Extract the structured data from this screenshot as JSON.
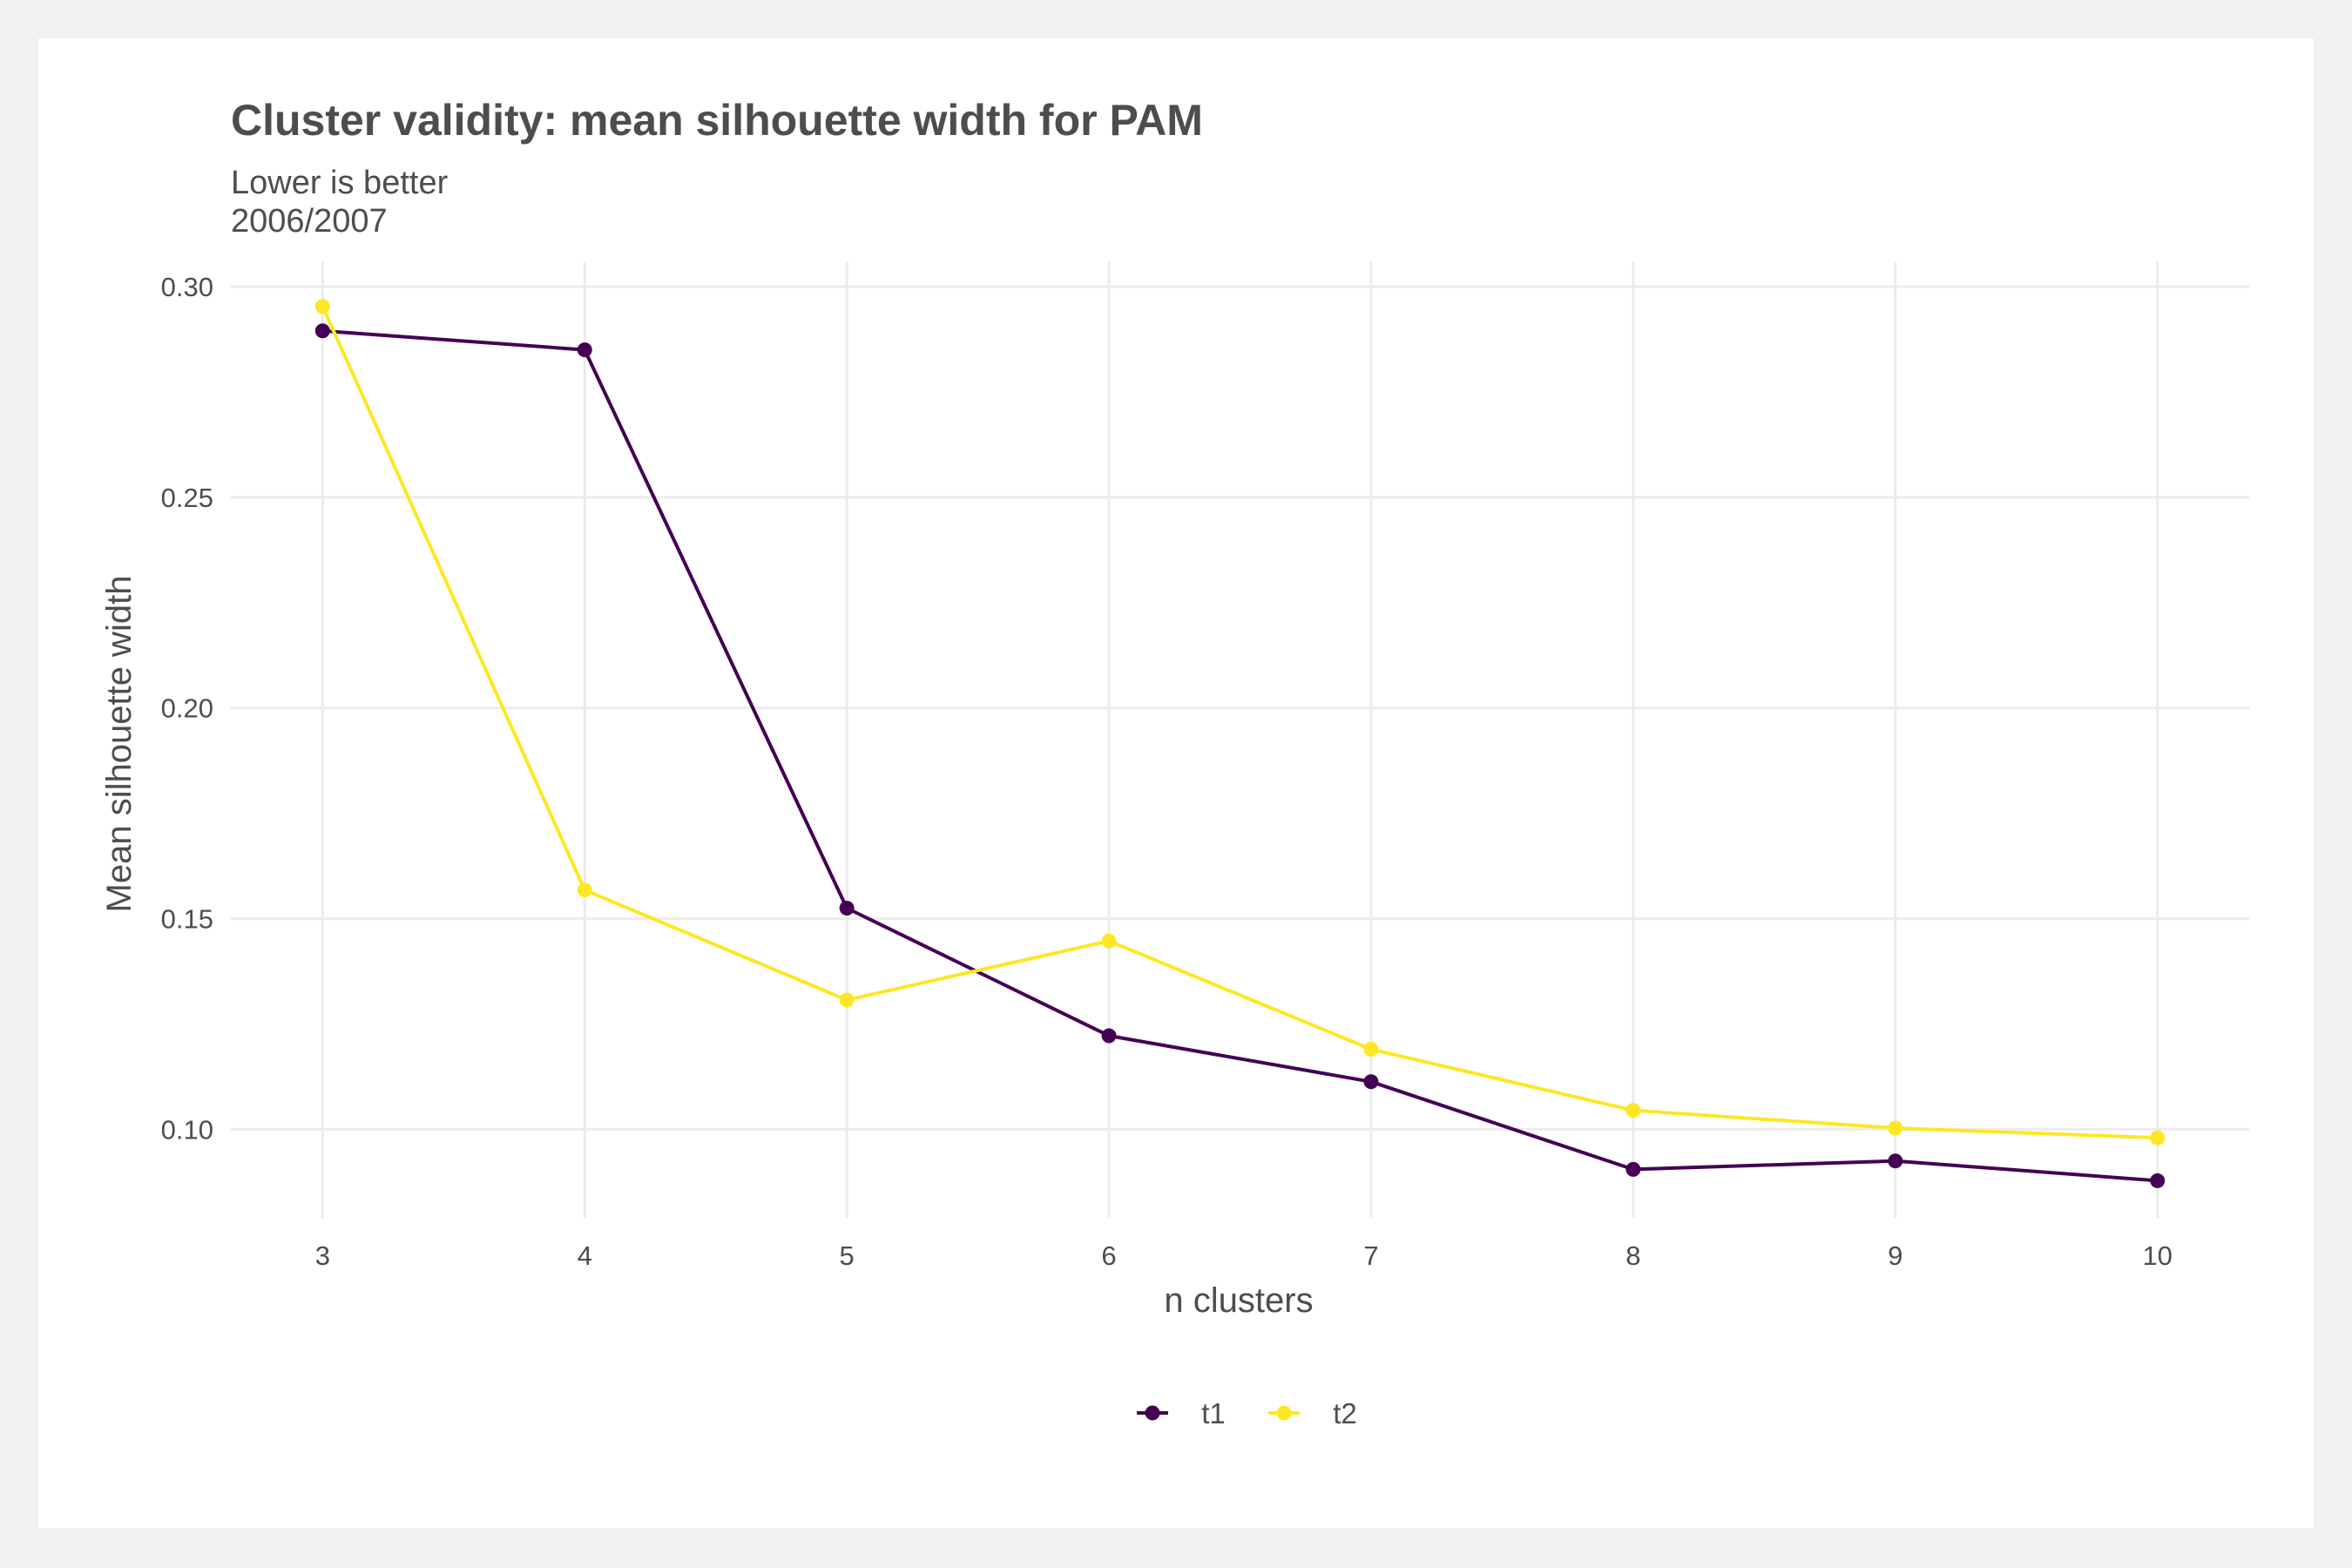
{
  "chart_data": {
    "type": "line",
    "title": "Cluster validity: mean silhouette width for PAM",
    "subtitle": "Lower is better",
    "subtitle2": "2006/2007",
    "xlabel": "n clusters",
    "ylabel": "Mean silhouette width",
    "x": [
      3,
      4,
      5,
      6,
      7,
      8,
      9,
      10
    ],
    "xlim": [
      2.65,
      10.35
    ],
    "ylim": [
      0.079,
      0.306
    ],
    "xticks": [
      3,
      4,
      5,
      6,
      7,
      8,
      9,
      10
    ],
    "yticks": [
      0.1,
      0.15,
      0.2,
      0.25,
      0.3
    ],
    "ytick_labels": [
      "0.10",
      "0.15",
      "0.20",
      "0.25",
      "0.30"
    ],
    "grid": true,
    "legend_position": "bottom",
    "series": [
      {
        "name": "t1",
        "color": "#440154",
        "values": [
          0.2895,
          0.285,
          0.1525,
          0.1222,
          0.1113,
          0.0905,
          0.0925,
          0.0878
        ]
      },
      {
        "name": "t2",
        "color": "#fde725",
        "values": [
          0.2953,
          0.1568,
          0.1307,
          0.1447,
          0.119,
          0.1045,
          0.1003,
          0.098
        ]
      }
    ]
  }
}
